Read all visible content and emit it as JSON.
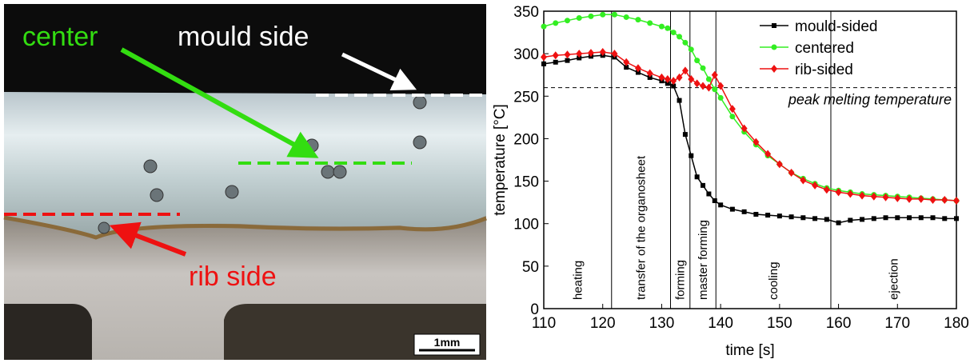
{
  "photo": {
    "center": "center",
    "mould_side": "mould side",
    "rib_side": "rib side",
    "scale_bar": "1mm"
  },
  "chart_data": {
    "type": "line",
    "xlabel": "time [s]",
    "ylabel": "temperature [°C]",
    "xlim": [
      110,
      180
    ],
    "xticks": [
      110,
      120,
      130,
      140,
      150,
      160,
      170,
      180
    ],
    "ylim": [
      0,
      350
    ],
    "yticks": [
      0,
      50,
      100,
      150,
      200,
      250,
      300,
      350
    ],
    "legend": "upper right",
    "x": [
      110,
      112,
      114,
      116,
      118,
      120,
      122,
      124,
      126,
      128,
      130,
      131,
      132,
      133,
      134,
      135,
      136,
      137,
      138,
      139,
      140,
      142,
      144,
      146,
      148,
      150,
      152,
      154,
      156,
      158,
      160,
      162,
      164,
      166,
      168,
      170,
      172,
      174,
      176,
      178,
      180
    ],
    "series": [
      {
        "name": "mould-sided",
        "color": "#000000",
        "marker": "square",
        "values": [
          288,
          290,
          292,
          295,
          297,
          298,
          296,
          284,
          278,
          272,
          268,
          265,
          262,
          245,
          205,
          180,
          155,
          145,
          135,
          127,
          122,
          117,
          114,
          111,
          110,
          109,
          108,
          107,
          106,
          105,
          101,
          104,
          105,
          106,
          107,
          107,
          107,
          107,
          107,
          106,
          106
        ]
      },
      {
        "name": "centered",
        "color": "#33ee22",
        "marker": "circle",
        "values": [
          332,
          336,
          339,
          342,
          344,
          346,
          346,
          343,
          340,
          336,
          332,
          330,
          325,
          320,
          313,
          305,
          292,
          283,
          270,
          258,
          248,
          226,
          208,
          193,
          180,
          170,
          160,
          153,
          147,
          142,
          139,
          137,
          135,
          134,
          133,
          132,
          131,
          130,
          129,
          128,
          127
        ]
      },
      {
        "name": "rib-sided",
        "color": "#ee1111",
        "marker": "diamond",
        "values": [
          296,
          298,
          299,
          300,
          301,
          302,
          300,
          290,
          283,
          277,
          272,
          270,
          268,
          272,
          280,
          270,
          265,
          262,
          260,
          275,
          262,
          235,
          212,
          196,
          182,
          170,
          160,
          151,
          145,
          140,
          137,
          135,
          133,
          132,
          131,
          130,
          129,
          129,
          128,
          128,
          127
        ]
      }
    ],
    "reference_line": {
      "value": 260,
      "label": "peak melting temperature"
    },
    "phase_lines": [
      121.5,
      131.5,
      134.8,
      139.2,
      158.7
    ],
    "phase_labels": [
      "heating",
      "transfer of the organosheet",
      "forming",
      "master forming",
      "cooling",
      "ejection"
    ]
  }
}
